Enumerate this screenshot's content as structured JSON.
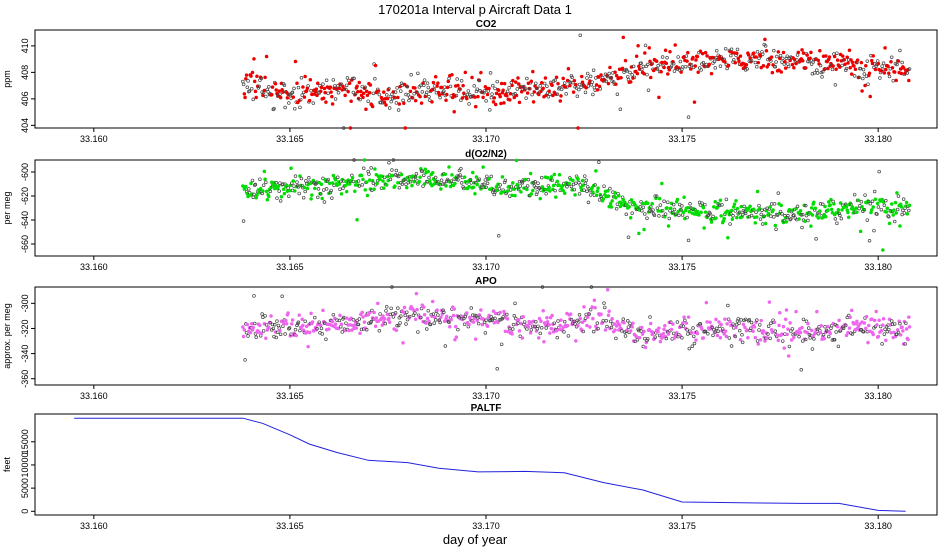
{
  "figure": {
    "title": "170201a   Interval p Aircraft Data 1",
    "xlabel": "day of year"
  },
  "chart_data": [
    {
      "type": "scatter",
      "title": "CO2",
      "ylabel": "ppm",
      "xlim": [
        33.1585,
        33.1815
      ],
      "ylim": [
        403.8,
        411.2
      ],
      "xticks": [
        "33.160",
        "33.165",
        "33.170",
        "33.175",
        "33.180"
      ],
      "xtick_values": [
        33.16,
        33.165,
        33.17,
        33.175,
        33.18
      ],
      "yticks": [
        "404",
        "406",
        "408",
        "410"
      ],
      "ytick_values": [
        404,
        406,
        408,
        410
      ],
      "color": "#ee0000",
      "x_range": [
        33.1638,
        33.1808
      ],
      "profile": [
        {
          "x": 33.1638,
          "y": 407.2
        },
        {
          "x": 33.165,
          "y": 406.3
        },
        {
          "x": 33.1665,
          "y": 406.7
        },
        {
          "x": 33.1675,
          "y": 406.2
        },
        {
          "x": 33.169,
          "y": 406.7
        },
        {
          "x": 33.171,
          "y": 406.5
        },
        {
          "x": 33.1725,
          "y": 407.1
        },
        {
          "x": 33.1735,
          "y": 408.0
        },
        {
          "x": 33.1745,
          "y": 408.6
        },
        {
          "x": 33.176,
          "y": 409.0
        },
        {
          "x": 33.1775,
          "y": 408.9
        },
        {
          "x": 33.179,
          "y": 408.6
        },
        {
          "x": 33.1808,
          "y": 408.3
        }
      ],
      "spread": 0.9
    },
    {
      "type": "scatter",
      "title": "d(O2/N2)",
      "ylabel": "per meg",
      "xlim": [
        33.1585,
        33.1815
      ],
      "ylim": [
        -670,
        -590
      ],
      "xticks": [
        "33.160",
        "33.165",
        "33.170",
        "33.175",
        "33.180"
      ],
      "xtick_values": [
        33.16,
        33.165,
        33.17,
        33.175,
        33.18
      ],
      "yticks": [
        "-660",
        "-640",
        "-620",
        "-600"
      ],
      "ytick_values": [
        -660,
        -640,
        -620,
        -600
      ],
      "color": "#00dd00",
      "x_range": [
        33.1638,
        33.1808
      ],
      "profile": [
        {
          "x": 33.1638,
          "y": -615
        },
        {
          "x": 33.1655,
          "y": -612
        },
        {
          "x": 33.167,
          "y": -607
        },
        {
          "x": 33.169,
          "y": -606
        },
        {
          "x": 33.1705,
          "y": -613
        },
        {
          "x": 33.1725,
          "y": -611
        },
        {
          "x": 33.1735,
          "y": -628
        },
        {
          "x": 33.175,
          "y": -632
        },
        {
          "x": 33.1765,
          "y": -633
        },
        {
          "x": 33.178,
          "y": -636
        },
        {
          "x": 33.1795,
          "y": -627
        },
        {
          "x": 33.1808,
          "y": -630
        }
      ],
      "spread": 8
    },
    {
      "type": "scatter",
      "title": "APO",
      "ylabel": "approx. per meg",
      "xlim": [
        33.1585,
        33.1815
      ],
      "ylim": [
        -365,
        -287
      ],
      "xticks": [
        "33.160",
        "33.165",
        "33.170",
        "33.175",
        "33.180"
      ],
      "xtick_values": [
        33.16,
        33.165,
        33.17,
        33.175,
        33.18
      ],
      "yticks": [
        "-360",
        "-340",
        "-320",
        "-300"
      ],
      "ytick_values": [
        -360,
        -340,
        -320,
        -300
      ],
      "color": "#ee66ee",
      "x_range": [
        33.1638,
        33.1808
      ],
      "profile": [
        {
          "x": 33.1638,
          "y": -320
        },
        {
          "x": 33.166,
          "y": -318
        },
        {
          "x": 33.168,
          "y": -309
        },
        {
          "x": 33.1695,
          "y": -312
        },
        {
          "x": 33.1715,
          "y": -318
        },
        {
          "x": 33.173,
          "y": -313
        },
        {
          "x": 33.174,
          "y": -325
        },
        {
          "x": 33.176,
          "y": -320
        },
        {
          "x": 33.178,
          "y": -325
        },
        {
          "x": 33.1795,
          "y": -318
        },
        {
          "x": 33.1808,
          "y": -322
        }
      ],
      "spread": 9
    },
    {
      "type": "line",
      "title": "PALTF",
      "ylabel": "feet",
      "xlim": [
        33.1585,
        33.1815
      ],
      "ylim": [
        -800,
        21000
      ],
      "xticks": [
        "33.160",
        "33.165",
        "33.170",
        "33.175",
        "33.180"
      ],
      "xtick_values": [
        33.16,
        33.165,
        33.17,
        33.175,
        33.18
      ],
      "yticks": [
        "0",
        "5000",
        "10000",
        "15000"
      ],
      "ytick_values": [
        0,
        5000,
        10000,
        15000
      ],
      "color": "#2222dd",
      "x": [
        33.1595,
        33.1638,
        33.1643,
        33.165,
        33.1655,
        33.1662,
        33.167,
        33.168,
        33.1688,
        33.1698,
        33.171,
        33.172,
        33.173,
        33.174,
        33.175,
        33.176,
        33.177,
        33.178,
        33.179,
        33.18,
        33.1807
      ],
      "y": [
        20100,
        20100,
        19000,
        16500,
        14500,
        12700,
        11000,
        10500,
        9300,
        8500,
        8600,
        8300,
        6200,
        4600,
        2000,
        1900,
        1800,
        1700,
        1700,
        200,
        0
      ]
    }
  ]
}
